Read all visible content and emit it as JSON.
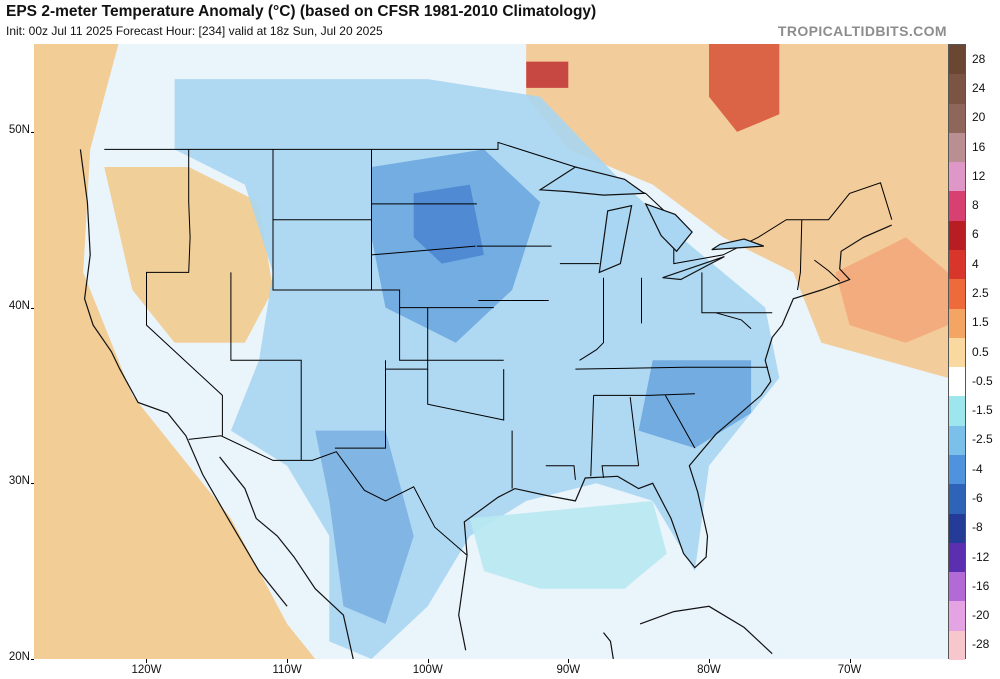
{
  "header": {
    "title": "EPS 2-meter Temperature Anomaly (°C) (based on CFSR 1981-2010 Climatology)",
    "subtitle": "Init: 00z Jul 11 2025   Forecast Hour: [234]   valid at 18z Sun, Jul 20 2025",
    "brand": "TROPICALTIDBITS.COM"
  },
  "map": {
    "projection": "equirectangular",
    "lon_range": [
      -128,
      -63
    ],
    "lat_range": [
      20,
      55
    ],
    "lat_labels": [
      {
        "lat": 50,
        "text": "50N"
      },
      {
        "lat": 40,
        "text": "40N"
      },
      {
        "lat": 30,
        "text": "30N"
      },
      {
        "lat": 20,
        "text": "20N"
      }
    ],
    "lon_labels": [
      {
        "lon": -120,
        "text": "120W"
      },
      {
        "lon": -110,
        "text": "110W"
      },
      {
        "lon": -100,
        "text": "100W"
      },
      {
        "lon": -90,
        "text": "90W"
      },
      {
        "lon": -80,
        "text": "80W"
      },
      {
        "lon": -70,
        "text": "70W"
      }
    ],
    "anomaly_regions": [
      {
        "name": "pacific-coast-warm",
        "color": "#f3c98a",
        "points": [
          [
            -128,
            55
          ],
          [
            -122,
            55
          ],
          [
            -124,
            49
          ],
          [
            -124.5,
            42
          ],
          [
            -121,
            35
          ],
          [
            -118,
            32
          ],
          [
            -114,
            28
          ],
          [
            -110,
            22
          ],
          [
            -108,
            20
          ],
          [
            -128,
            20
          ]
        ]
      },
      {
        "name": "southeast-canada-warm",
        "color": "#f4c890",
        "points": [
          [
            -93,
            55
          ],
          [
            -63,
            55
          ],
          [
            -63,
            36
          ],
          [
            -72,
            38
          ],
          [
            -74,
            42
          ],
          [
            -79,
            44
          ],
          [
            -84,
            47
          ],
          [
            -90,
            49
          ],
          [
            -93,
            52
          ]
        ]
      },
      {
        "name": "atlantic-warm",
        "color": "#f3a87a",
        "points": [
          [
            -71,
            42
          ],
          [
            -66,
            44
          ],
          [
            -63,
            42
          ],
          [
            -63,
            39
          ],
          [
            -66,
            38
          ],
          [
            -70,
            39
          ]
        ]
      },
      {
        "name": "western-interior-warm",
        "color": "#f2cb8e",
        "points": [
          [
            -123,
            48
          ],
          [
            -117,
            48
          ],
          [
            -112,
            46
          ],
          [
            -111,
            41
          ],
          [
            -113,
            38
          ],
          [
            -118,
            38
          ],
          [
            -121,
            41
          ]
        ]
      },
      {
        "name": "central-cool",
        "color": "#a9d6f2",
        "points": [
          [
            -118,
            53
          ],
          [
            -100,
            53
          ],
          [
            -92,
            52
          ],
          [
            -86,
            47
          ],
          [
            -82,
            44
          ],
          [
            -76,
            40
          ],
          [
            -75,
            36
          ],
          [
            -80,
            31
          ],
          [
            -81,
            25
          ],
          [
            -84,
            29
          ],
          [
            -88,
            30
          ],
          [
            -93,
            29
          ],
          [
            -97,
            27
          ],
          [
            -100,
            23
          ],
          [
            -104,
            20
          ],
          [
            -107,
            21
          ],
          [
            -107,
            27
          ],
          [
            -110,
            31
          ],
          [
            -114,
            33
          ],
          [
            -112,
            37
          ],
          [
            -111,
            42
          ],
          [
            -113,
            47
          ],
          [
            -118,
            49
          ]
        ]
      },
      {
        "name": "plains-cold",
        "color": "#6ea7e0",
        "points": [
          [
            -104,
            48
          ],
          [
            -96,
            49
          ],
          [
            -92,
            46
          ],
          [
            -94,
            41
          ],
          [
            -98,
            38
          ],
          [
            -103,
            40
          ],
          [
            -104,
            44
          ]
        ]
      },
      {
        "name": "dakotas-very-cold",
        "color": "#4d86d1",
        "points": [
          [
            -101,
            46.5
          ],
          [
            -97,
            47
          ],
          [
            -96,
            43
          ],
          [
            -99,
            42.5
          ],
          [
            -101,
            44
          ]
        ]
      },
      {
        "name": "carolinas-cold",
        "color": "#6da6df",
        "points": [
          [
            -84,
            37
          ],
          [
            -77,
            37
          ],
          [
            -77,
            34
          ],
          [
            -81,
            32
          ],
          [
            -85,
            33
          ]
        ]
      },
      {
        "name": "mexico-plateau-cold",
        "color": "#7cb0e2",
        "points": [
          [
            -108,
            33
          ],
          [
            -103,
            33
          ],
          [
            -101,
            27
          ],
          [
            -103,
            22
          ],
          [
            -106,
            23
          ],
          [
            -107,
            29
          ]
        ]
      },
      {
        "name": "gulf-cool",
        "color": "#b8e9f1",
        "points": [
          [
            -97,
            28
          ],
          [
            -84,
            29
          ],
          [
            -83,
            26
          ],
          [
            -86,
            24
          ],
          [
            -92,
            24
          ],
          [
            -96,
            25
          ]
        ]
      },
      {
        "name": "quebec-hot",
        "color": "#d8583d",
        "points": [
          [
            -80,
            55
          ],
          [
            -75,
            55
          ],
          [
            -75,
            51
          ],
          [
            -78,
            50
          ],
          [
            -80,
            52
          ]
        ]
      },
      {
        "name": "hudson-hot",
        "color": "#c23a3a",
        "points": [
          [
            -93,
            54
          ],
          [
            -90,
            54
          ],
          [
            -90,
            52.5
          ],
          [
            -93,
            52.5
          ]
        ]
      }
    ],
    "colorbar": [
      {
        "label": "28",
        "color": "#6b4733"
      },
      {
        "label": "24",
        "color": "#7b5443"
      },
      {
        "label": "20",
        "color": "#8e675a"
      },
      {
        "label": "16",
        "color": "#b98f93"
      },
      {
        "label": "12",
        "color": "#df97c8"
      },
      {
        "label": "8",
        "color": "#d84072"
      },
      {
        "label": "6",
        "color": "#b71d22"
      },
      {
        "label": "4",
        "color": "#d8352b"
      },
      {
        "label": "2.5",
        "color": "#ee6a3a"
      },
      {
        "label": "1.5",
        "color": "#f4a463"
      },
      {
        "label": "0.5",
        "color": "#f9d9a0"
      },
      {
        "label": "-0.5",
        "color": "#ffffff"
      },
      {
        "label": "-1.5",
        "color": "#9de6ee"
      },
      {
        "label": "-2.5",
        "color": "#7ac0ea"
      },
      {
        "label": "-4",
        "color": "#4f93dc"
      },
      {
        "label": "-6",
        "color": "#2f63b8"
      },
      {
        "label": "-8",
        "color": "#243b98"
      },
      {
        "label": "-12",
        "color": "#5c2fb0"
      },
      {
        "label": "-16",
        "color": "#b26ad6"
      },
      {
        "label": "-20",
        "color": "#e4a3e3"
      },
      {
        "label": "-28",
        "color": "#f8c6cd"
      }
    ]
  }
}
